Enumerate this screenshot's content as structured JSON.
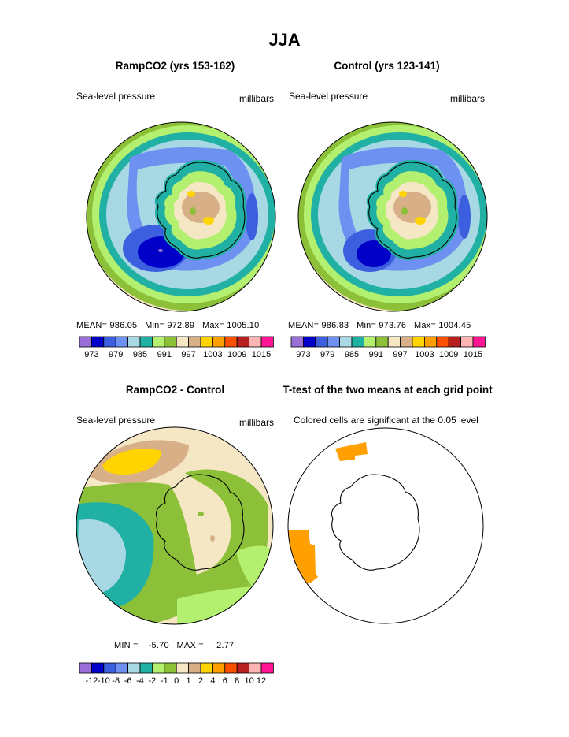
{
  "figure": {
    "title": "JJA"
  },
  "panels": [
    {
      "id": "rampco2",
      "title": "RampCO2 (yrs 153-162)",
      "left_label": "Sea-level pressure",
      "right_label": "millibars",
      "stats": {
        "mean_label": "MEAN=",
        "mean": "986.05",
        "min_label": "Min=",
        "min": "972.89",
        "max_label": "Max=",
        "max": "1005.10"
      }
    },
    {
      "id": "control",
      "title": "Control (yrs 123-141)",
      "left_label": "Sea-level pressure",
      "right_label": "millibars",
      "stats": {
        "mean_label": "MEAN=",
        "mean": "986.83",
        "min_label": "Min=",
        "min": "973.76",
        "max_label": "Max=",
        "max": "1004.45"
      }
    },
    {
      "id": "difference",
      "title": "RampCO2 - Control",
      "left_label": "Sea-level pressure",
      "right_label": "millibars",
      "stats": {
        "min_label": "MIN =",
        "min": "-5.70",
        "max_label": "MAX =",
        "max": "2.77"
      }
    },
    {
      "id": "ttest",
      "title": "T-test of the two means at each grid point",
      "left_label": "Colored cells are significant at the 0.05 level",
      "significant_color": "#ff9f00"
    }
  ],
  "colorbars": {
    "pressure": {
      "colors": [
        "#9a70d8",
        "#0000c8",
        "#3c5fe0",
        "#6e90f0",
        "#a8d8e4",
        "#20b0a4",
        "#b4f070",
        "#8cc038",
        "#f5e6c4",
        "#d8b088",
        "#ffd400",
        "#ffa000",
        "#ff5000",
        "#b82020",
        "#ffb4b4",
        "#ff1493"
      ],
      "labels": [
        "973",
        "979",
        "985",
        "991",
        "997",
        "1003",
        "1009",
        "1015"
      ]
    },
    "difference": {
      "colors": [
        "#9a70d8",
        "#0000c8",
        "#3c5fe0",
        "#6e90f0",
        "#a8d8e4",
        "#20b0a4",
        "#b4f070",
        "#8cc038",
        "#f5e6c4",
        "#d8b088",
        "#ffd400",
        "#ffa000",
        "#ff5000",
        "#b82020",
        "#ffb4b4",
        "#ff1493"
      ],
      "labels": [
        "-12",
        "-10",
        "-8",
        "-6",
        "-4",
        "-2",
        "-1",
        "0",
        "1",
        "2",
        "4",
        "6",
        "8",
        "10",
        "12"
      ]
    }
  }
}
